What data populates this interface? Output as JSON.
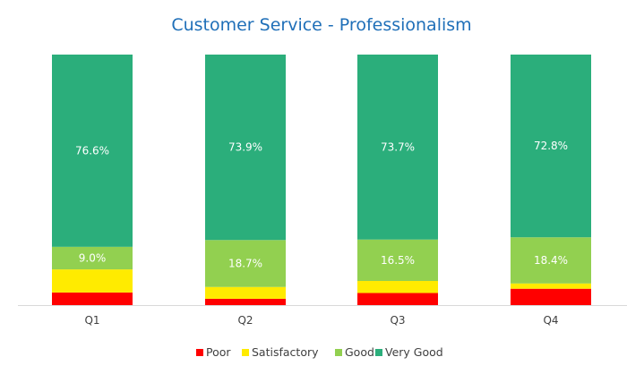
{
  "chart_data": {
    "type": "bar",
    "stacked": true,
    "title": "Customer Service - Professionalism",
    "categories": [
      "Q1",
      "Q2",
      "Q3",
      "Q4"
    ],
    "ylim": [
      0,
      100
    ],
    "grid": false,
    "legend_position": "bottom",
    "series": [
      {
        "name": "Poor",
        "color": "#FF0000",
        "values": [
          5.2,
          2.7,
          5.0,
          6.7
        ],
        "show_labels": false
      },
      {
        "name": "Satisfactory",
        "color": "#FFEB00",
        "values": [
          9.2,
          4.7,
          4.8,
          2.1
        ],
        "show_labels": false
      },
      {
        "name": "Good",
        "color": "#92D050",
        "values": [
          9.0,
          18.7,
          16.5,
          18.4
        ],
        "labels": [
          "9.0%",
          "18.7%",
          "16.5%",
          "18.4%"
        ],
        "show_labels": true
      },
      {
        "name": "Very Good",
        "color": "#2BAE7B",
        "values": [
          76.6,
          73.9,
          73.7,
          72.8
        ],
        "labels": [
          "76.6%",
          "73.9%",
          "73.7%",
          "72.8%"
        ],
        "show_labels": true
      }
    ]
  }
}
